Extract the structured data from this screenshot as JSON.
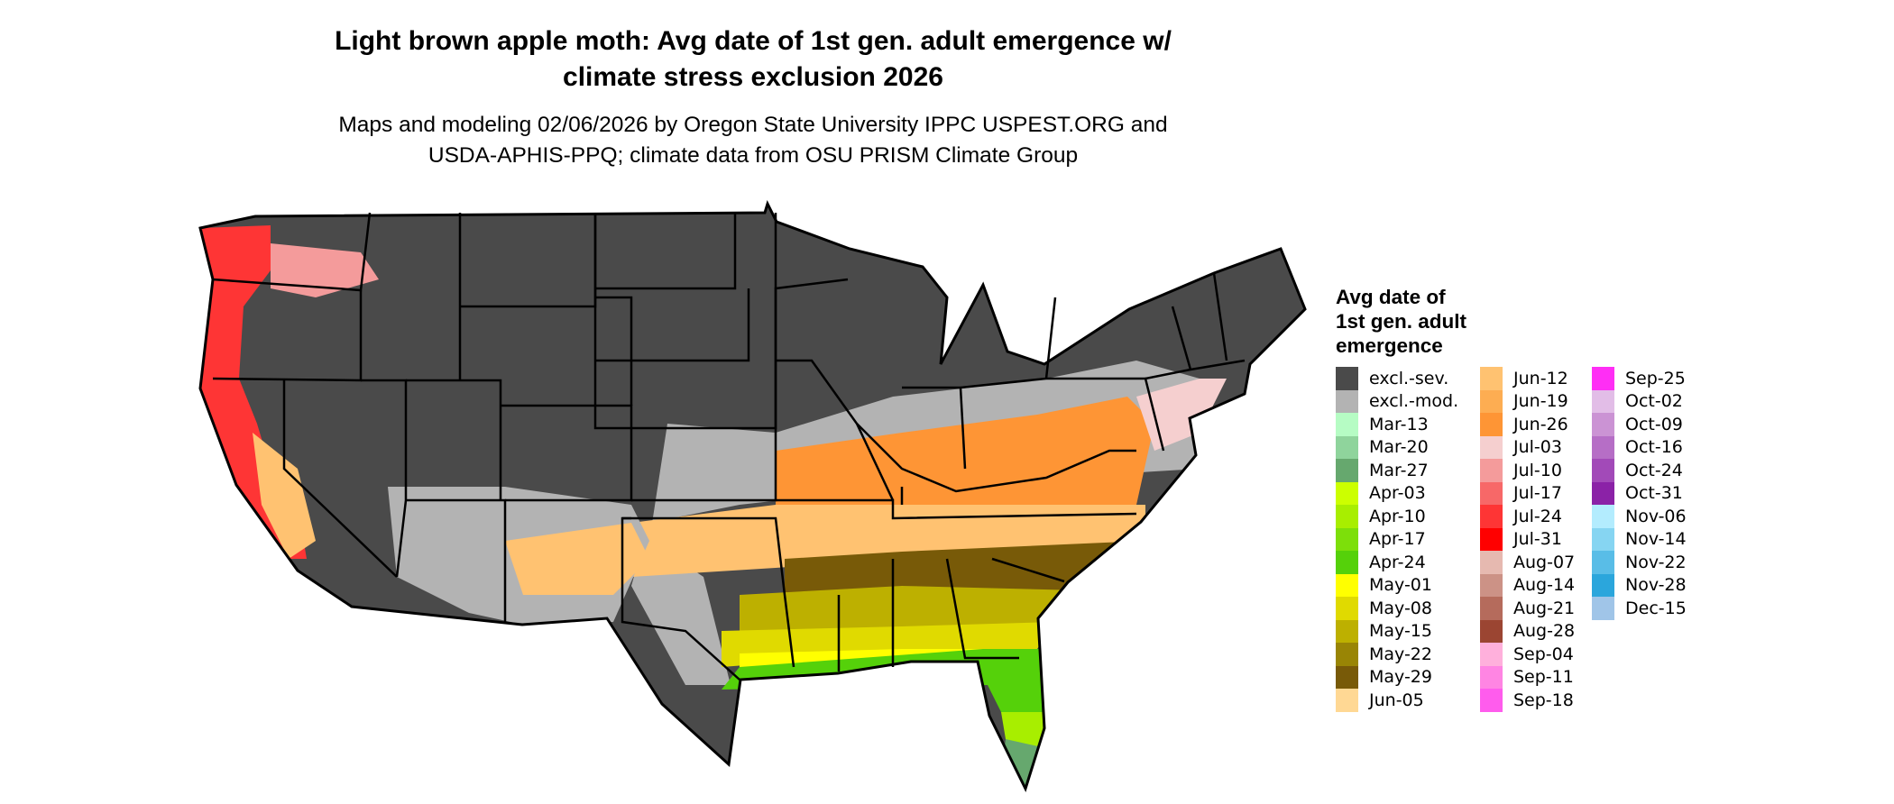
{
  "title": [
    "Light brown apple moth: Avg date of 1st gen. adult emergence w/",
    "climate stress exclusion 2026"
  ],
  "subtitle": [
    "Maps and modeling 02/06/2026 by Oregon State University IPPC USPEST.ORG and",
    "USDA-APHIS-PPQ; climate data from OSU PRISM Climate Group"
  ],
  "chart_data": {
    "type": "heatmap",
    "legend": {
      "title": [
        "Avg date of",
        "1st gen. adult",
        "emergence"
      ],
      "placement": "right",
      "columns": [
        [
          {
            "label": "excl.-sev.",
            "color": "#4a4a4a"
          },
          {
            "label": "excl.-mod.",
            "color": "#b3b3b3"
          },
          {
            "label": "Mar-13",
            "color": "#b6fcc4"
          },
          {
            "label": "Mar-20",
            "color": "#8fd49c"
          },
          {
            "label": "Mar-27",
            "color": "#66a86e"
          },
          {
            "label": "Apr-03",
            "color": "#ccff00"
          },
          {
            "label": "Apr-10",
            "color": "#a8ee00"
          },
          {
            "label": "Apr-17",
            "color": "#7ddf0a"
          },
          {
            "label": "Apr-24",
            "color": "#55d10a"
          },
          {
            "label": "May-01",
            "color": "#ffff00"
          },
          {
            "label": "May-08",
            "color": "#e0da00"
          },
          {
            "label": "May-15",
            "color": "#bdb000"
          },
          {
            "label": "May-22",
            "color": "#998505"
          },
          {
            "label": "May-29",
            "color": "#785a08"
          },
          {
            "label": "Jun-05",
            "color": "#ffd894"
          }
        ],
        [
          {
            "label": "Jun-12",
            "color": "#ffc271"
          },
          {
            "label": "Jun-19",
            "color": "#fdad52"
          },
          {
            "label": "Jun-26",
            "color": "#fe9535"
          },
          {
            "label": "Jul-03",
            "color": "#f5cfcf"
          },
          {
            "label": "Jul-10",
            "color": "#f49b9b"
          },
          {
            "label": "Jul-17",
            "color": "#f76868"
          },
          {
            "label": "Jul-24",
            "color": "#fe3535"
          },
          {
            "label": "Jul-31",
            "color": "#ff0000"
          },
          {
            "label": "Aug-07",
            "color": "#e6b9b0"
          },
          {
            "label": "Aug-14",
            "color": "#cc9286"
          },
          {
            "label": "Aug-21",
            "color": "#b56b5c"
          },
          {
            "label": "Aug-28",
            "color": "#9b4532"
          },
          {
            "label": "Sep-04",
            "color": "#ffb0dc"
          },
          {
            "label": "Sep-11",
            "color": "#ff85e3"
          },
          {
            "label": "Sep-18",
            "color": "#ff5ced"
          }
        ],
        [
          {
            "label": "Sep-25",
            "color": "#ff2ef5"
          },
          {
            "label": "Oct-02",
            "color": "#e2bde7"
          },
          {
            "label": "Oct-09",
            "color": "#cb93d4"
          },
          {
            "label": "Oct-16",
            "color": "#b66ec6"
          },
          {
            "label": "Oct-24",
            "color": "#a24ab8"
          },
          {
            "label": "Oct-31",
            "color": "#8b22a7"
          },
          {
            "label": "Nov-06",
            "color": "#b3ecfe"
          },
          {
            "label": "Nov-14",
            "color": "#86d5f2"
          },
          {
            "label": "Nov-22",
            "color": "#59bde7"
          },
          {
            "label": "Nov-28",
            "color": "#2ba6dc"
          },
          {
            "label": "Dec-15",
            "color": "#a0c5e8"
          }
        ]
      ]
    }
  }
}
